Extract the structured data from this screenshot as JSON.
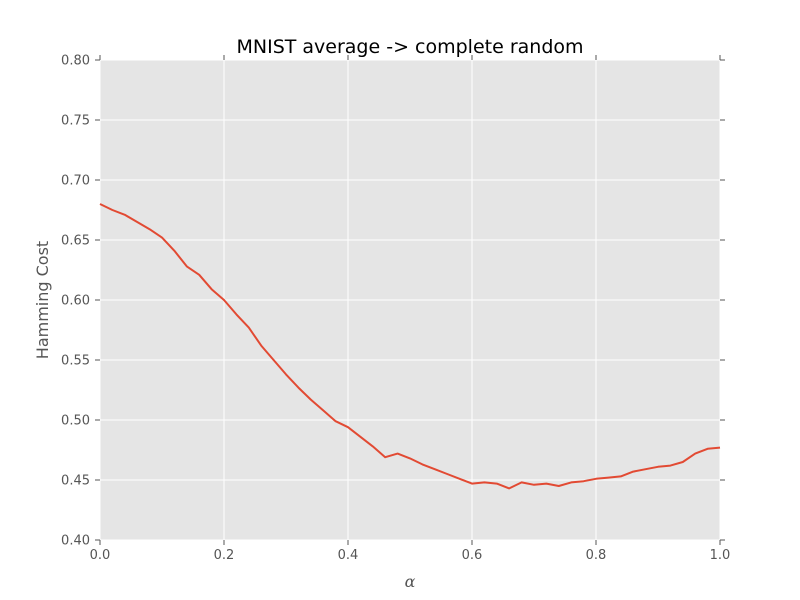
{
  "chart_data": {
    "type": "line",
    "title": "MNIST average -> complete random",
    "xlabel": "α",
    "ylabel": "Hamming Cost",
    "xlim": [
      0.0,
      1.0
    ],
    "ylim": [
      0.4,
      0.8
    ],
    "x_ticks": [
      "0.0",
      "0.2",
      "0.4",
      "0.6",
      "0.8",
      "1.0"
    ],
    "y_ticks": [
      "0.40",
      "0.45",
      "0.50",
      "0.55",
      "0.60",
      "0.65",
      "0.70",
      "0.75",
      "0.80"
    ],
    "grid": true,
    "background": "#e5e5e5",
    "grid_color": "#ffffff",
    "series": [
      {
        "color": "#e24a33",
        "x": [
          0.0,
          0.02,
          0.04,
          0.06,
          0.08,
          0.1,
          0.12,
          0.14,
          0.16,
          0.18,
          0.2,
          0.22,
          0.24,
          0.26,
          0.28,
          0.3,
          0.32,
          0.34,
          0.36,
          0.38,
          0.4,
          0.42,
          0.44,
          0.46,
          0.48,
          0.5,
          0.52,
          0.54,
          0.56,
          0.58,
          0.6,
          0.62,
          0.64,
          0.66,
          0.68,
          0.7,
          0.72,
          0.74,
          0.76,
          0.78,
          0.8,
          0.82,
          0.84,
          0.86,
          0.88,
          0.9,
          0.92,
          0.94,
          0.96,
          0.98,
          1.0
        ],
        "y": [
          0.68,
          0.675,
          0.671,
          0.665,
          0.659,
          0.652,
          0.641,
          0.628,
          0.621,
          0.609,
          0.6,
          0.588,
          0.577,
          0.562,
          0.55,
          0.538,
          0.527,
          0.517,
          0.508,
          0.499,
          0.494,
          0.486,
          0.478,
          0.469,
          0.472,
          0.468,
          0.463,
          0.459,
          0.455,
          0.451,
          0.447,
          0.448,
          0.447,
          0.443,
          0.448,
          0.446,
          0.447,
          0.445,
          0.448,
          0.449,
          0.451,
          0.452,
          0.453,
          0.457,
          0.459,
          0.461,
          0.462,
          0.465,
          0.472,
          0.476,
          0.477
        ]
      }
    ]
  }
}
